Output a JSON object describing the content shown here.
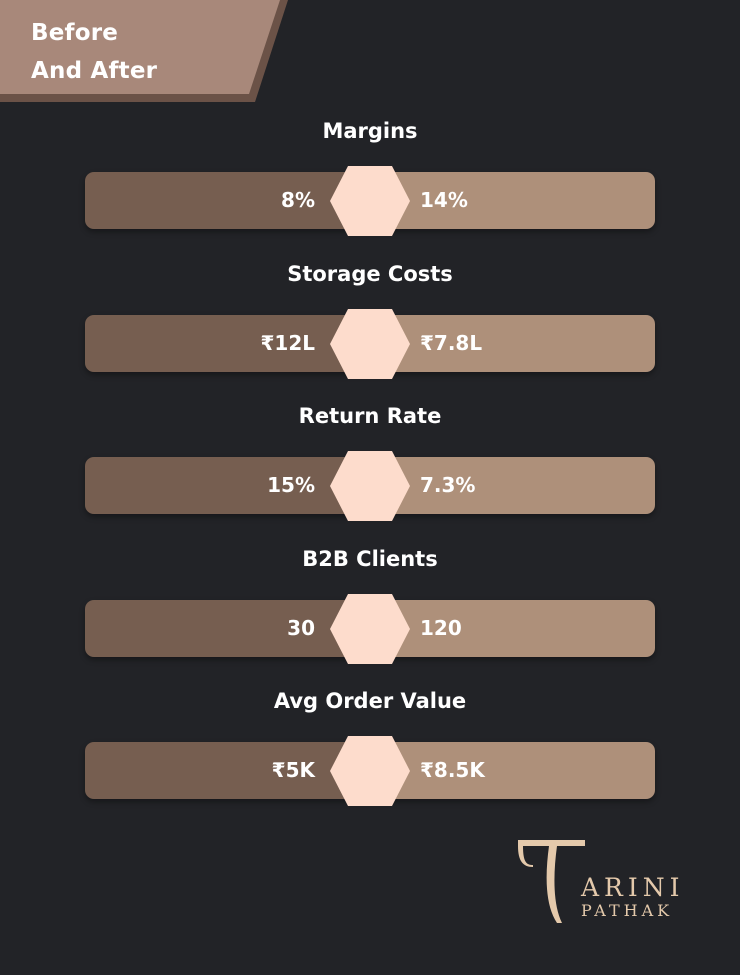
{
  "header": {
    "title_line1": "Before",
    "title_line2": "And After"
  },
  "colors": {
    "background": "#222327",
    "banner": "#a8887a",
    "before_bar": "#765e50",
    "after_bar": "#ae907a",
    "hexagon": "#fddccc",
    "logo": "#e4c9ab"
  },
  "metrics": [
    {
      "label": "Margins",
      "before": "8%",
      "after": "14%"
    },
    {
      "label": "Storage Costs",
      "before": "₹12L",
      "after": "₹7.8L"
    },
    {
      "label": "Return Rate",
      "before": "15%",
      "after": "7.3%"
    },
    {
      "label": "B2B Clients",
      "before": "30",
      "after": "120"
    },
    {
      "label": "Avg Order Value",
      "before": "₹5K",
      "after": "₹8.5K"
    }
  ],
  "logo": {
    "first_name": "ARINI",
    "last_name": "PATHAK",
    "monogram": "T"
  }
}
